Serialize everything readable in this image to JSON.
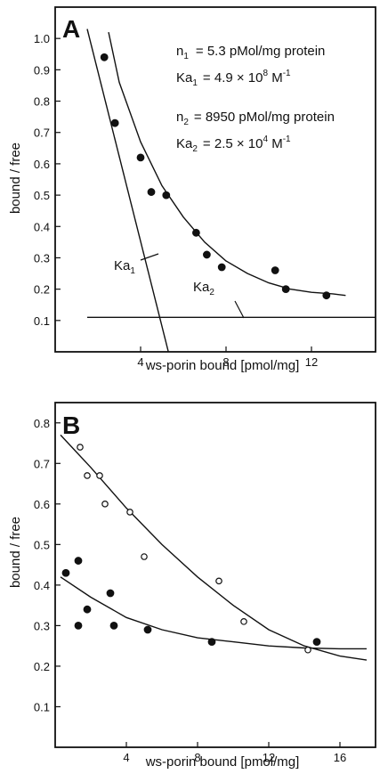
{
  "chart_data": [
    {
      "panel": "A",
      "type": "scatter",
      "xlabel": "ws-porin bound [pmol/mg]",
      "ylabel": "bound / free",
      "xlim": [
        0,
        15
      ],
      "ylim": [
        0,
        1.1
      ],
      "xticks": [
        "4",
        "8",
        "12"
      ],
      "yticks": [
        "0.1",
        "0.2",
        "0.3",
        "0.4",
        "0.5",
        "0.6",
        "0.7",
        "0.8",
        "0.9",
        "1.0"
      ],
      "annotations": {
        "n1": {
          "label": "n",
          "sub": "1",
          "value": "= 5.3 pMol/mg protein"
        },
        "ka1": {
          "label": "Ka",
          "sub": "1",
          "value": "= 4.9 × 10",
          "sup": "8",
          "unit": " M",
          "unit_sup": "-1"
        },
        "n2": {
          "label": "n",
          "sub": "2",
          "value": "= 8950 pMol/mg protein"
        },
        "ka2": {
          "label": "Ka",
          "sub": "2",
          "value": "= 2.5 × 10",
          "sup": "4",
          "unit": " M",
          "unit_sup": "-1"
        },
        "ka1_line_label": {
          "label": "Ka",
          "sub": "1"
        },
        "ka2_line_label": {
          "label": "Ka",
          "sub": "2"
        }
      },
      "series": [
        {
          "marker": "filled",
          "points": [
            [
              2.3,
              0.94
            ],
            [
              2.8,
              0.73
            ],
            [
              4.0,
              0.62
            ],
            [
              4.5,
              0.51
            ],
            [
              5.2,
              0.5
            ],
            [
              6.6,
              0.38
            ],
            [
              7.1,
              0.31
            ],
            [
              7.8,
              0.27
            ],
            [
              10.3,
              0.26
            ],
            [
              10.8,
              0.2
            ],
            [
              12.7,
              0.18
            ]
          ]
        }
      ],
      "lines": [
        {
          "name": "fit-curve",
          "points": [
            [
              2.5,
              1.02
            ],
            [
              3,
              0.86
            ],
            [
              4,
              0.67
            ],
            [
              5,
              0.53
            ],
            [
              6,
              0.43
            ],
            [
              7,
              0.35
            ],
            [
              8,
              0.29
            ],
            [
              9,
              0.25
            ],
            [
              10,
              0.22
            ],
            [
              11,
              0.2
            ],
            [
              12,
              0.19
            ],
            [
              13,
              0.185
            ],
            [
              13.6,
              0.18
            ]
          ]
        },
        {
          "name": "ka1-line",
          "points": [
            [
              1.5,
              1.03
            ],
            [
              5.3,
              0.0
            ]
          ]
        },
        {
          "name": "ka2-line",
          "points": [
            [
              1.5,
              0.11
            ],
            [
              15,
              0.11
            ]
          ]
        }
      ]
    },
    {
      "panel": "B",
      "type": "scatter",
      "xlabel": "ws-porin bound [pmol/mg]",
      "ylabel": "bound / free",
      "xlim": [
        0,
        18
      ],
      "ylim": [
        0,
        0.85
      ],
      "xticks": [
        "4",
        "8",
        "12",
        "16"
      ],
      "yticks": [
        "0.1",
        "0.2",
        "0.3",
        "0.4",
        "0.5",
        "0.6",
        "0.7",
        "0.8"
      ],
      "series": [
        {
          "marker": "open",
          "points": [
            [
              1.4,
              0.74
            ],
            [
              1.8,
              0.67
            ],
            [
              2.5,
              0.67
            ],
            [
              2.8,
              0.6
            ],
            [
              4.2,
              0.58
            ],
            [
              5.0,
              0.47
            ],
            [
              9.2,
              0.41
            ],
            [
              10.6,
              0.31
            ],
            [
              14.2,
              0.24
            ]
          ]
        },
        {
          "marker": "filled",
          "points": [
            [
              0.6,
              0.43
            ],
            [
              1.3,
              0.46
            ],
            [
              1.3,
              0.3
            ],
            [
              1.8,
              0.34
            ],
            [
              3.1,
              0.38
            ],
            [
              3.3,
              0.3
            ],
            [
              5.2,
              0.29
            ],
            [
              8.8,
              0.26
            ],
            [
              14.7,
              0.26
            ]
          ]
        }
      ],
      "lines": [
        {
          "name": "open-fit",
          "points": [
            [
              0.3,
              0.77
            ],
            [
              2,
              0.69
            ],
            [
              4,
              0.59
            ],
            [
              6,
              0.5
            ],
            [
              8,
              0.42
            ],
            [
              10,
              0.35
            ],
            [
              12,
              0.29
            ],
            [
              14,
              0.25
            ],
            [
              16,
              0.225
            ],
            [
              17.5,
              0.215
            ]
          ]
        },
        {
          "name": "filled-fit",
          "points": [
            [
              0.3,
              0.42
            ],
            [
              2,
              0.37
            ],
            [
              4,
              0.32
            ],
            [
              6,
              0.29
            ],
            [
              8,
              0.27
            ],
            [
              10,
              0.26
            ],
            [
              12,
              0.25
            ],
            [
              14,
              0.245
            ],
            [
              16,
              0.243
            ],
            [
              17.5,
              0.243
            ]
          ]
        }
      ]
    }
  ]
}
